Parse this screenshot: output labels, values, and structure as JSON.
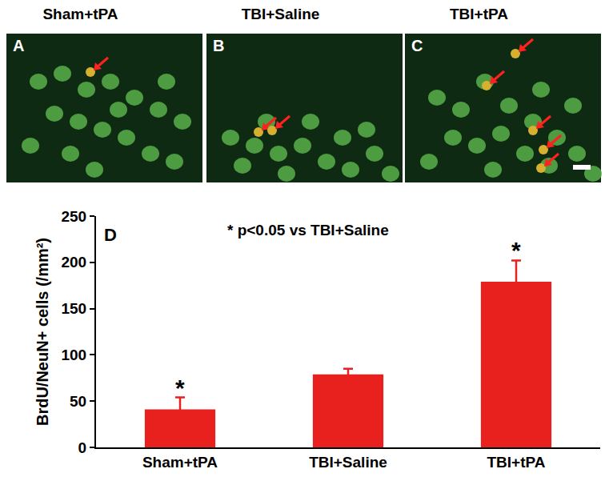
{
  "panels": [
    {
      "letter": "A",
      "title": "Sham+tPA"
    },
    {
      "letter": "B",
      "title": "TBI+Saline"
    },
    {
      "letter": "C",
      "title": "TBI+tPA"
    }
  ],
  "chart_data": {
    "type": "bar",
    "panel_letter": "D",
    "categories": [
      "Sham+tPA",
      "TBI+Saline",
      "TBI+tPA"
    ],
    "values": [
      41,
      79,
      179
    ],
    "errors": [
      13,
      6,
      23
    ],
    "color": "#e8211f",
    "y_label": "BrdU/NeuN+ cells (/mm²)",
    "ylim": [
      0,
      250
    ],
    "yticks": [
      0,
      50,
      100,
      150,
      200,
      250
    ],
    "grid": false,
    "annotations": [
      {
        "text": "* p<0.05 vs TBI+Saline"
      },
      {
        "text": "*",
        "category": "Sham+tPA"
      },
      {
        "text": "*",
        "category": "TBI+tPA"
      }
    ]
  }
}
